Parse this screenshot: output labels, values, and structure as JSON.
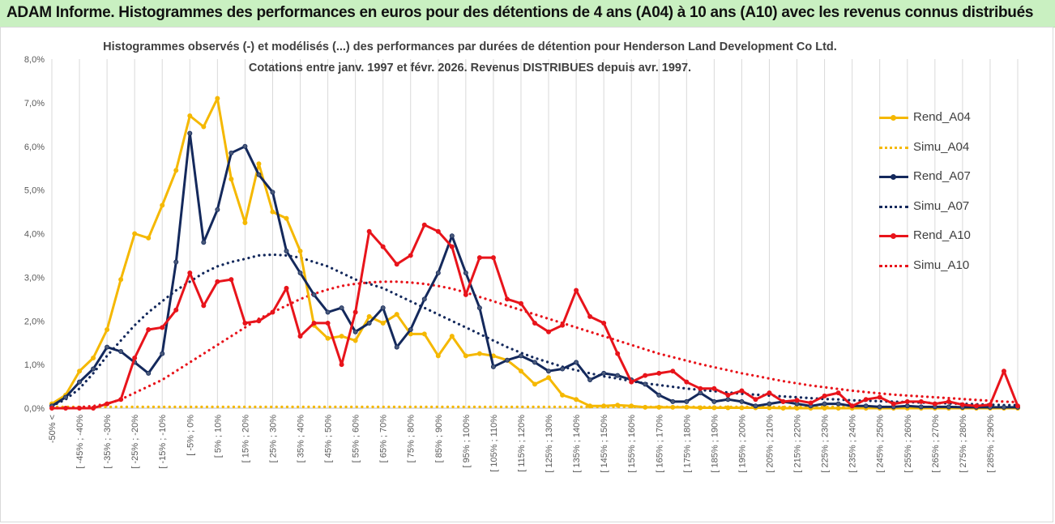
{
  "banner": {
    "title": "ADAM Informe. Histogrammes des performances en euros pour des détentions de 4 ans (A04) à 10 ans (A10) avec les revenus connus distribués"
  },
  "chart_data": {
    "type": "line",
    "title_line1": "Histogrammes observés (-) et modélisés (...) des performances par durées de détention pour Henderson Land Development Co Ltd.",
    "title_line2": "Cotations entre janv. 1997 et févr. 2026. Revenus DISTRIBUES depuis avr. 1997.",
    "ylim": [
      0,
      8
    ],
    "y_ticks": [
      "0,0%",
      "1,0%",
      "2,0%",
      "3,0%",
      "4,0%",
      "5,0%",
      "6,0%",
      "7,0%",
      "8,0%"
    ],
    "x_tick_labels": [
      "-50% <",
      "[ -45% ; -40%",
      "[ -35% ; -30%",
      "[ -25% ; -20%",
      "[ -15% ; -10%",
      "[ -5% ; 0%",
      "[ 5% ; 10%",
      "[ 15% ; 20%",
      "[ 25% ; 30%",
      "[ 35% ; 40%",
      "[ 45% ; 50%",
      "[ 55% ; 60%",
      "[ 65% ; 70%",
      "[ 75% ; 80%",
      "[ 85% ; 90%",
      "[ 95% ; 100%",
      "[ 105% ; 110%",
      "[ 115% ; 120%",
      "[ 125% ; 130%",
      "[ 135% ; 140%",
      "[ 145% ; 150%",
      "[ 155% ; 160%",
      "[ 165% ; 170%",
      "[ 175% ; 180%",
      "[ 185% ; 190%",
      "[ 195% ; 200%",
      "[ 205% ; 210%",
      "[ 215% ; 220%",
      "[ 225% ; 230%",
      "[ 235% ; 240%",
      "[ 245% ; 250%",
      "[ 255% ; 260%",
      "[ 265% ; 270%",
      "[ 275% ; 280%",
      "[ 285% ; 290%"
    ],
    "legend_position": "right",
    "grid": "vertical",
    "series": [
      {
        "name": "Rend_A04",
        "style": "solid",
        "color": "#f5b800",
        "values": [
          0.1,
          0.3,
          0.85,
          1.15,
          1.8,
          2.95,
          4.0,
          3.9,
          4.65,
          5.45,
          6.7,
          6.45,
          7.1,
          5.25,
          4.25,
          5.6,
          4.5,
          4.35,
          3.6,
          1.9,
          1.6,
          1.65,
          1.55,
          2.1,
          1.95,
          2.15,
          1.7,
          1.7,
          1.2,
          1.65,
          1.2,
          1.25,
          1.2,
          1.1,
          0.85,
          0.55,
          0.7,
          0.3,
          0.2,
          0.05,
          0.05,
          0.07,
          0.05,
          0.02,
          0.02,
          0.02,
          0.02,
          0.01,
          0.01,
          0.01,
          0.01,
          0.01,
          0.01,
          0,
          0,
          0,
          0,
          0,
          0,
          0,
          0,
          0,
          0,
          0,
          0,
          0,
          0,
          0,
          0,
          0,
          0
        ]
      },
      {
        "name": "Simu_A04",
        "style": "dotted",
        "color": "#f5b800",
        "values": [
          0.03,
          0.03,
          0.03,
          0.03,
          0.03,
          0.03,
          0.03,
          0.03,
          0.03,
          0.03,
          0.03,
          0.03,
          0.03,
          0.03,
          0.03,
          0.03,
          0.03,
          0.03,
          0.03,
          0.03,
          0.03,
          0.03,
          0.03,
          0.03,
          0.03,
          0.03,
          0.03,
          0.03,
          0.03,
          0.03,
          0.03,
          0.03,
          0.03,
          0.03,
          0.03,
          0.03,
          0.03,
          0.03,
          0.03,
          0.03,
          0.03,
          0.03,
          0.03,
          0.03,
          0.03,
          0.03,
          0.03,
          0.03,
          0.03,
          0.03,
          0.03,
          0.03,
          0.03,
          0.03,
          0.03,
          0.03,
          0.03,
          0.03,
          0.03,
          0.03,
          0.03,
          0.03,
          0.03,
          0.03,
          0.03,
          0.03,
          0.03,
          0.03,
          0.03,
          0.03,
          0.03
        ]
      },
      {
        "name": "Rend_A07",
        "style": "solid",
        "color": "#14295c",
        "values": [
          0.05,
          0.25,
          0.6,
          0.9,
          1.4,
          1.3,
          1.05,
          0.8,
          1.25,
          3.35,
          6.3,
          3.8,
          4.55,
          5.85,
          6.0,
          5.35,
          4.95,
          3.6,
          3.1,
          2.6,
          2.2,
          2.3,
          1.75,
          1.95,
          2.3,
          1.4,
          1.8,
          2.5,
          3.1,
          3.95,
          3.1,
          2.3,
          0.95,
          1.1,
          1.2,
          1.05,
          0.85,
          0.9,
          1.05,
          0.65,
          0.8,
          0.75,
          0.65,
          0.55,
          0.3,
          0.15,
          0.15,
          0.35,
          0.15,
          0.2,
          0.15,
          0.05,
          0.1,
          0.15,
          0.1,
          0.05,
          0.1,
          0.1,
          0.05,
          0.05,
          0.03,
          0.03,
          0.05,
          0.03,
          0.03,
          0.03,
          0.02,
          0.02,
          0.02,
          0.02,
          0.02
        ]
      },
      {
        "name": "Simu_A07",
        "style": "dotted",
        "color": "#14295c",
        "values": [
          0.05,
          0.2,
          0.45,
          0.8,
          1.2,
          1.55,
          1.9,
          2.2,
          2.45,
          2.7,
          2.9,
          3.1,
          3.25,
          3.35,
          3.42,
          3.5,
          3.52,
          3.5,
          3.45,
          3.35,
          3.25,
          3.1,
          2.95,
          2.85,
          2.75,
          2.6,
          2.45,
          2.3,
          2.15,
          2.0,
          1.85,
          1.7,
          1.55,
          1.4,
          1.27,
          1.15,
          1.05,
          0.95,
          0.87,
          0.8,
          0.73,
          0.68,
          0.62,
          0.57,
          0.53,
          0.49,
          0.45,
          0.42,
          0.39,
          0.36,
          0.33,
          0.31,
          0.29,
          0.27,
          0.25,
          0.23,
          0.21,
          0.2,
          0.18,
          0.17,
          0.16,
          0.15,
          0.14,
          0.13,
          0.12,
          0.11,
          0.1,
          0.09,
          0.08,
          0.07,
          0.07
        ]
      },
      {
        "name": "Rend_A10",
        "style": "solid",
        "color": "#e8141b",
        "values": [
          0,
          0,
          0,
          0,
          0.1,
          0.2,
          1.15,
          1.8,
          1.85,
          2.25,
          3.1,
          2.35,
          2.9,
          2.95,
          1.95,
          2.0,
          2.2,
          2.75,
          1.65,
          1.95,
          1.95,
          1.0,
          2.2,
          4.05,
          3.7,
          3.3,
          3.5,
          4.2,
          4.05,
          3.7,
          2.6,
          3.45,
          3.45,
          2.5,
          2.4,
          1.95,
          1.75,
          1.9,
          2.7,
          2.1,
          1.95,
          1.25,
          0.6,
          0.75,
          0.8,
          0.85,
          0.6,
          0.45,
          0.45,
          0.3,
          0.4,
          0.2,
          0.35,
          0.15,
          0.18,
          0.12,
          0.28,
          0.35,
          0.05,
          0.2,
          0.25,
          0.1,
          0.15,
          0.15,
          0.1,
          0.15,
          0.08,
          0.05,
          0.08,
          0.85,
          0.05
        ]
      },
      {
        "name": "Simu_A10",
        "style": "dotted",
        "color": "#e8141b",
        "values": [
          0.0,
          0.0,
          0.02,
          0.05,
          0.1,
          0.2,
          0.35,
          0.5,
          0.65,
          0.85,
          1.05,
          1.25,
          1.45,
          1.65,
          1.85,
          2.05,
          2.2,
          2.35,
          2.5,
          2.62,
          2.72,
          2.8,
          2.85,
          2.88,
          2.9,
          2.9,
          2.88,
          2.85,
          2.8,
          2.74,
          2.65,
          2.55,
          2.45,
          2.35,
          2.25,
          2.15,
          2.05,
          1.95,
          1.85,
          1.75,
          1.65,
          1.55,
          1.45,
          1.35,
          1.25,
          1.17,
          1.09,
          1.01,
          0.94,
          0.87,
          0.8,
          0.74,
          0.68,
          0.62,
          0.57,
          0.52,
          0.48,
          0.44,
          0.4,
          0.37,
          0.34,
          0.31,
          0.29,
          0.27,
          0.25,
          0.23,
          0.21,
          0.19,
          0.17,
          0.15,
          0.14
        ]
      }
    ]
  }
}
